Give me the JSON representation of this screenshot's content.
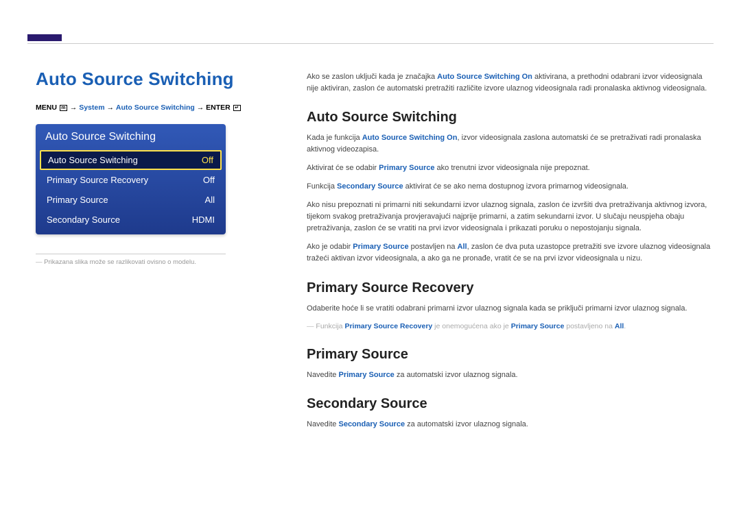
{
  "page": {
    "title": "Auto Source Switching"
  },
  "breadcrumb": {
    "menu_label": "MENU",
    "system": "System",
    "feature": "Auto Source Switching",
    "enter_label": "ENTER",
    "menu_icon_glyph": "m",
    "enter_icon_glyph": "↵"
  },
  "menu": {
    "header": "Auto Source Switching",
    "items": [
      {
        "label": "Auto Source Switching",
        "value": "Off",
        "selected": true
      },
      {
        "label": "Primary Source Recovery",
        "value": "Off",
        "selected": false
      },
      {
        "label": "Primary Source",
        "value": "All",
        "selected": false
      },
      {
        "label": "Secondary Source",
        "value": "HDMI",
        "selected": false
      }
    ]
  },
  "footnote": "Prikazana slika može se razlikovati ovisno o modelu.",
  "right": {
    "intro": {
      "pre": "Ako se zaslon uključi kada je značajka ",
      "em": "Auto Source Switching On",
      "post": " aktivirana, a prethodni odabrani izvor videosignala nije aktiviran, zaslon će automatski pretražiti različite izvore ulaznog videosignala radi pronalaska aktivnog videosignala."
    },
    "section1": {
      "heading": "Auto Source Switching",
      "p1_pre": "Kada je funkcija ",
      "p1_em": "Auto Source Switching On",
      "p1_post": ", izvor videosignala zaslona automatski će se pretraživati radi pronalaska aktivnog videozapisa.",
      "p2_pre": "Aktivirat će se odabir ",
      "p2_em": "Primary Source",
      "p2_post": " ako trenutni izvor videosignala nije prepoznat.",
      "p3_pre": "Funkcija ",
      "p3_em": "Secondary Source",
      "p3_post": " aktivirat će se ako nema dostupnog izvora primarnog videosignala.",
      "p4": "Ako nisu prepoznati ni primarni niti sekundarni izvor ulaznog signala, zaslon će izvršiti dva pretraživanja aktivnog izvora, tijekom svakog pretraživanja provjeravajući najprije primarni, a zatim sekundarni izvor. U slučaju neuspjeha obaju pretraživanja, zaslon će se vratiti na prvi izvor videosignala i prikazati poruku o nepostojanju signala.",
      "p5_pre": "Ako je odabir ",
      "p5_em1": "Primary Source",
      "p5_mid": " postavljen na ",
      "p5_em2": "All",
      "p5_post": ", zaslon će dva puta uzastopce pretražiti sve izvore ulaznog videosignala tražeći aktivan izvor videosignala, a ako ga ne pronađe, vratit će se na prvi izvor videosignala u nizu."
    },
    "section2": {
      "heading": "Primary Source Recovery",
      "p1": "Odaberite hoće li se vratiti odabrani primarni izvor ulaznog signala kada se priključi primarni izvor ulaznog signala.",
      "note_pre": "Funkcija ",
      "note_em1": "Primary Source Recovery",
      "note_mid": " je onemogućena ako je ",
      "note_em2": "Primary Source",
      "note_mid2": " postavljeno na ",
      "note_em3": "All",
      "note_post": "."
    },
    "section3": {
      "heading": "Primary Source",
      "p1_pre": "Navedite ",
      "p1_em": "Primary Source",
      "p1_post": " za automatski izvor ulaznog signala."
    },
    "section4": {
      "heading": "Secondary Source",
      "p1_pre": "Navedite ",
      "p1_em": "Secondary Source",
      "p1_post": " za automatski izvor ulaznog signala."
    }
  },
  "colors": {
    "brand_blue": "#1a5fb4",
    "panel_top": "#3159b7",
    "panel_bottom": "#1e3a8c",
    "selected_bg": "#0b1a4a",
    "highlight_yellow": "#ffe24a"
  }
}
